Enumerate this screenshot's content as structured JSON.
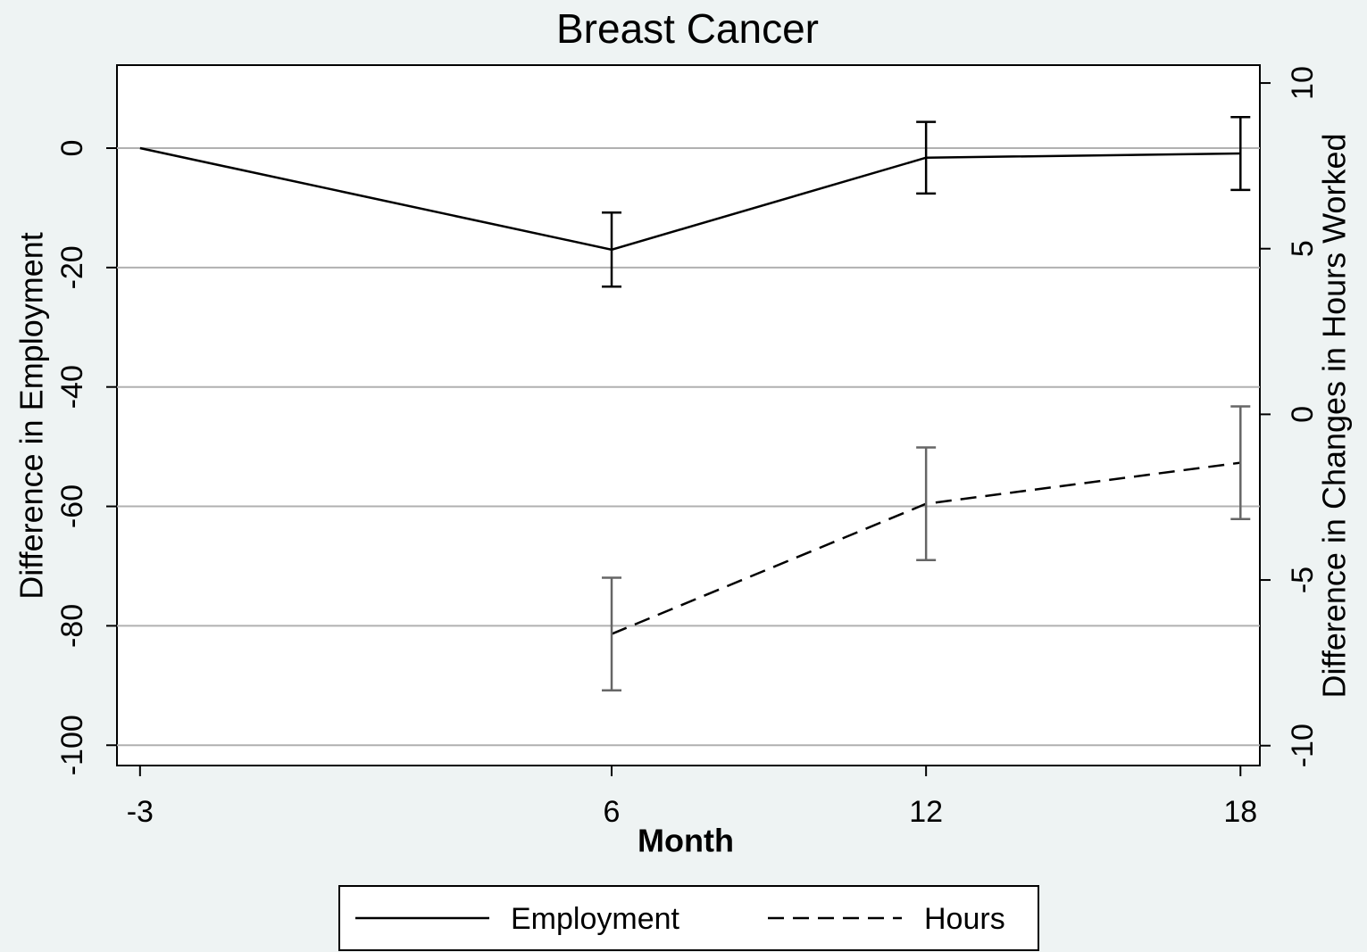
{
  "chart_data": {
    "type": "line",
    "title": "Breast Cancer",
    "x_label": "Month",
    "y_label": "Difference in Employment",
    "y2_label": "Difference in Changes in Hours Worked",
    "x": [
      -3,
      6,
      12,
      18
    ],
    "series": [
      {
        "name": "Employment",
        "color": "#000000",
        "dash": "solid",
        "values": [
          0,
          -17,
          -1.6,
          -0.9
        ],
        "errors": [
          null,
          6.2,
          6,
          6.1
        ]
      },
      {
        "name": "Hours",
        "color": "#000000",
        "error_color": "#666666",
        "dash": "dashed",
        "axis": "y2",
        "values": [
          null,
          -6.63,
          -2.7,
          -1.46
        ],
        "errors": [
          null,
          1.7,
          1.7,
          1.7
        ]
      }
    ],
    "xlim": [
      -3.44,
      18.37
    ],
    "xticks": [
      -3,
      6,
      12,
      18
    ],
    "ylim": [
      -103.4,
      13.9
    ],
    "yticks": [
      -100,
      -80,
      -60,
      -40,
      -20,
      0
    ],
    "y2lim": [
      -10.6,
      10.54
    ],
    "y2ticks": [
      -10,
      -5,
      0,
      5,
      10
    ],
    "grid": true,
    "legend": "bottom"
  }
}
